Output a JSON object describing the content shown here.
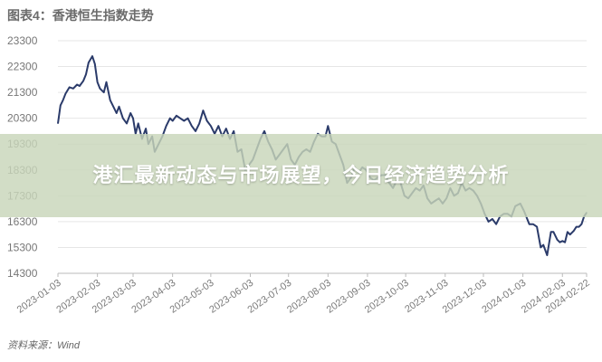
{
  "chart_data": {
    "type": "line",
    "title": "图表4：香港恒生指数走势",
    "source": "资料来源：Wind",
    "colors": {
      "line": "#2b3b6a",
      "grid": "#e6e6e6",
      "axis": "#bbbbbb"
    },
    "ylim": [
      14300,
      23300
    ],
    "yticks": [
      14300,
      15300,
      16300,
      17300,
      18300,
      19300,
      20300,
      21300,
      22300,
      23300
    ],
    "xticks": [
      "2023-01-03",
      "2023-02-03",
      "2023-03-03",
      "2023-04-03",
      "2023-05-03",
      "2023-06-03",
      "2023-07-03",
      "2023-08-03",
      "2023-09-03",
      "2023-10-03",
      "2023-11-03",
      "2023-12-03",
      "2024-01-03",
      "2024-02-03",
      "2024-02-22"
    ],
    "series": [
      {
        "values": [
          [
            "2023-01-03",
            20100
          ],
          [
            "2023-01-05",
            20800
          ],
          [
            "2023-01-07",
            21000
          ],
          [
            "2023-01-09",
            21250
          ],
          [
            "2023-01-12",
            21500
          ],
          [
            "2023-01-15",
            21450
          ],
          [
            "2023-01-18",
            21600
          ],
          [
            "2023-01-20",
            21550
          ],
          [
            "2023-01-23",
            21750
          ],
          [
            "2023-01-25",
            22000
          ],
          [
            "2023-01-27",
            22450
          ],
          [
            "2023-01-30",
            22700
          ],
          [
            "2023-02-01",
            22400
          ],
          [
            "2023-02-03",
            21700
          ],
          [
            "2023-02-05",
            21450
          ],
          [
            "2023-02-08",
            21300
          ],
          [
            "2023-02-10",
            21700
          ],
          [
            "2023-02-13",
            21000
          ],
          [
            "2023-02-16",
            20700
          ],
          [
            "2023-02-18",
            20500
          ],
          [
            "2023-02-20",
            20750
          ],
          [
            "2023-02-23",
            20300
          ],
          [
            "2023-02-26",
            20100
          ],
          [
            "2023-03-01",
            20500
          ],
          [
            "2023-03-03",
            20300
          ],
          [
            "2023-03-05",
            19700
          ],
          [
            "2023-03-07",
            20100
          ],
          [
            "2023-03-10",
            19500
          ],
          [
            "2023-03-13",
            19900
          ],
          [
            "2023-03-15",
            19300
          ],
          [
            "2023-03-18",
            19600
          ],
          [
            "2023-03-20",
            19000
          ],
          [
            "2023-03-23",
            19300
          ],
          [
            "2023-03-26",
            19600
          ],
          [
            "2023-03-29",
            20000
          ],
          [
            "2023-04-01",
            20300
          ],
          [
            "2023-04-03",
            20200
          ],
          [
            "2023-04-06",
            20400
          ],
          [
            "2023-04-09",
            20300
          ],
          [
            "2023-04-12",
            20200
          ],
          [
            "2023-04-15",
            20300
          ],
          [
            "2023-04-18",
            20000
          ],
          [
            "2023-04-21",
            19800
          ],
          [
            "2023-04-24",
            20100
          ],
          [
            "2023-04-27",
            20600
          ],
          [
            "2023-04-30",
            20200
          ],
          [
            "2023-05-03",
            20000
          ],
          [
            "2023-05-06",
            19700
          ],
          [
            "2023-05-09",
            20000
          ],
          [
            "2023-05-12",
            19600
          ],
          [
            "2023-05-15",
            19900
          ],
          [
            "2023-05-18",
            19500
          ],
          [
            "2023-05-21",
            19800
          ],
          [
            "2023-05-24",
            19000
          ],
          [
            "2023-05-27",
            19100
          ],
          [
            "2023-05-30",
            18300
          ],
          [
            "2023-06-02",
            18500
          ],
          [
            "2023-06-05",
            18700
          ],
          [
            "2023-06-08",
            19100
          ],
          [
            "2023-06-11",
            19500
          ],
          [
            "2023-06-14",
            19800
          ],
          [
            "2023-06-17",
            19400
          ],
          [
            "2023-06-20",
            19100
          ],
          [
            "2023-06-23",
            18700
          ],
          [
            "2023-06-26",
            18900
          ],
          [
            "2023-06-29",
            19100
          ],
          [
            "2023-07-02",
            19300
          ],
          [
            "2023-07-05",
            18700
          ],
          [
            "2023-07-08",
            18500
          ],
          [
            "2023-07-11",
            18800
          ],
          [
            "2023-07-14",
            19000
          ],
          [
            "2023-07-17",
            19100
          ],
          [
            "2023-07-20",
            19000
          ],
          [
            "2023-07-23",
            19400
          ],
          [
            "2023-07-26",
            19700
          ],
          [
            "2023-07-29",
            19600
          ],
          [
            "2023-08-01",
            19600
          ],
          [
            "2023-08-03",
            20000
          ],
          [
            "2023-08-06",
            19400
          ],
          [
            "2023-08-09",
            19300
          ],
          [
            "2023-08-12",
            18900
          ],
          [
            "2023-08-15",
            18500
          ],
          [
            "2023-08-18",
            17800
          ],
          [
            "2023-08-21",
            18000
          ],
          [
            "2023-08-24",
            18400
          ],
          [
            "2023-08-27",
            18200
          ],
          [
            "2023-08-30",
            18400
          ],
          [
            "2023-09-02",
            18300
          ],
          [
            "2023-09-05",
            18000
          ],
          [
            "2023-09-08",
            17900
          ],
          [
            "2023-09-11",
            18000
          ],
          [
            "2023-09-14",
            18100
          ],
          [
            "2023-09-17",
            18100
          ],
          [
            "2023-09-20",
            17800
          ],
          [
            "2023-09-23",
            17600
          ],
          [
            "2023-09-26",
            17900
          ],
          [
            "2023-09-29",
            17800
          ],
          [
            "2023-10-02",
            17300
          ],
          [
            "2023-10-05",
            17200
          ],
          [
            "2023-10-08",
            17400
          ],
          [
            "2023-10-11",
            17600
          ],
          [
            "2023-10-14",
            17500
          ],
          [
            "2023-10-17",
            17700
          ],
          [
            "2023-10-20",
            17200
          ],
          [
            "2023-10-23",
            17000
          ],
          [
            "2023-10-26",
            17100
          ],
          [
            "2023-10-29",
            17200
          ],
          [
            "2023-11-01",
            17000
          ],
          [
            "2023-11-04",
            17200
          ],
          [
            "2023-11-07",
            17600
          ],
          [
            "2023-11-10",
            17300
          ],
          [
            "2023-11-13",
            17400
          ],
          [
            "2023-11-16",
            17800
          ],
          [
            "2023-11-19",
            17500
          ],
          [
            "2023-11-22",
            17600
          ],
          [
            "2023-11-25",
            17500
          ],
          [
            "2023-11-28",
            17300
          ],
          [
            "2023-12-01",
            17000
          ],
          [
            "2023-12-04",
            16600
          ],
          [
            "2023-12-07",
            16300
          ],
          [
            "2023-12-10",
            16400
          ],
          [
            "2023-12-13",
            16200
          ],
          [
            "2023-12-16",
            16500
          ],
          [
            "2023-12-19",
            16600
          ],
          [
            "2023-12-22",
            16600
          ],
          [
            "2023-12-25",
            16500
          ],
          [
            "2023-12-28",
            16900
          ],
          [
            "2024-01-01",
            17000
          ],
          [
            "2024-01-04",
            16700
          ],
          [
            "2024-01-08",
            16200
          ],
          [
            "2024-01-11",
            16200
          ],
          [
            "2024-01-14",
            16100
          ],
          [
            "2024-01-17",
            15300
          ],
          [
            "2024-01-19",
            15400
          ],
          [
            "2024-01-22",
            15000
          ],
          [
            "2024-01-25",
            15900
          ],
          [
            "2024-01-27",
            15900
          ],
          [
            "2024-01-30",
            15600
          ],
          [
            "2024-02-01",
            15500
          ],
          [
            "2024-02-03",
            15550
          ],
          [
            "2024-02-05",
            15500
          ],
          [
            "2024-02-07",
            15900
          ],
          [
            "2024-02-09",
            15800
          ],
          [
            "2024-02-12",
            15950
          ],
          [
            "2024-02-14",
            16100
          ],
          [
            "2024-02-16",
            16100
          ],
          [
            "2024-02-18",
            16200
          ],
          [
            "2024-02-20",
            16500
          ],
          [
            "2024-02-22",
            16650
          ]
        ]
      }
    ]
  },
  "overlay": {
    "headline": "港汇最新动态与市场展望，今日经济趋势分析"
  }
}
